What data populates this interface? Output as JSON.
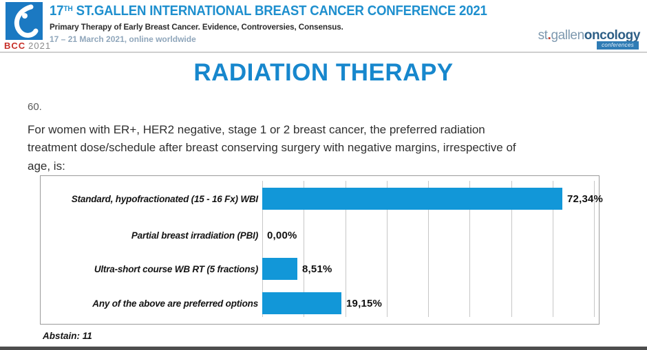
{
  "header": {
    "logo_caption": {
      "bcc": "BCC",
      "year": "2021"
    },
    "title_num": "17",
    "title_sup": "TH",
    "title_rest": " ST.GALLEN INTERNATIONAL BREAST CANCER CONFERENCE 2021",
    "subtitle": "Primary Therapy of Early Breast Cancer. Evidence, Controversies, Consensus.",
    "dates": "17 – 21 March 2021, online worldwide",
    "right_logo": {
      "st": "st",
      "dot": ".",
      "gallen": "gallen",
      "oncology": "oncology",
      "badge": "conferences"
    }
  },
  "slide": {
    "title": "RADIATION THERAPY",
    "question_number": "60.",
    "question_lines": [
      "For women with ER+, HER2 negative, stage 1 or 2 breast cancer, the preferred radiation",
      "treatment dose/schedule after breast conserving surgery with negative margins, irrespective of",
      "age, is:"
    ],
    "abstain": "Abstain: 11"
  },
  "chart_data": {
    "type": "bar",
    "orientation": "horizontal",
    "categories": [
      "Standard, hypofractionated (15 - 16 Fx) WBI",
      "Partial breast irradiation (PBI)",
      "Ultra-short course WB RT (5 fractions)",
      "Any of the above are preferred options"
    ],
    "values": [
      72.34,
      0.0,
      8.51,
      19.15
    ],
    "value_labels": [
      "72,34%",
      "0,00%",
      "8,51%",
      "19,15%"
    ],
    "xlim": [
      0,
      80
    ],
    "gridline_step": 10,
    "grid": true,
    "legend_position": "none",
    "bar_color": "#1297d8"
  },
  "colors": {
    "header_blue": "#1e8fce",
    "logo_blue": "#1b79c2",
    "bcc_red": "#c62f28",
    "slide_title_blue": "#1787cd",
    "bar_blue": "#1297d8"
  }
}
